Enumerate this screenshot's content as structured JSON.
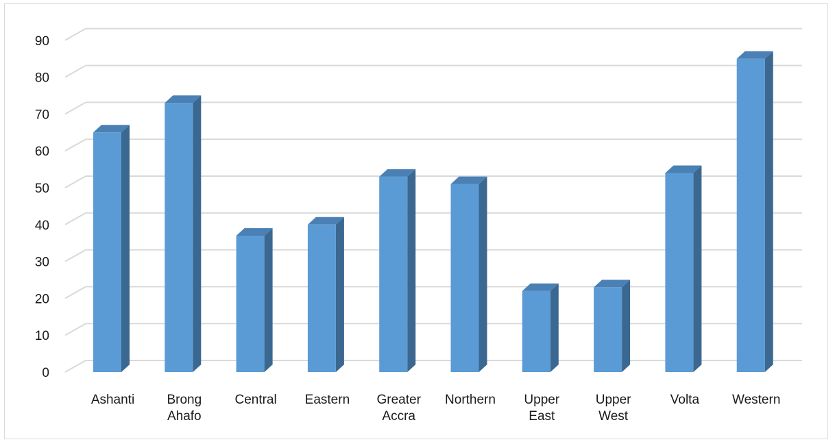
{
  "chart_data": {
    "type": "bar",
    "style": "3d-column",
    "categories": [
      [
        "Ashanti"
      ],
      [
        "Brong",
        "Ahafo"
      ],
      [
        "Central"
      ],
      [
        "Eastern"
      ],
      [
        "Greater",
        "Accra"
      ],
      [
        "Northern"
      ],
      [
        "Upper",
        "East"
      ],
      [
        "Upper",
        "West"
      ],
      [
        "Volta"
      ],
      [
        "Western"
      ]
    ],
    "values": [
      65,
      73,
      37,
      40,
      53,
      51,
      22,
      23,
      54,
      85
    ],
    "ylim": [
      0,
      90
    ],
    "yticks": [
      0,
      10,
      20,
      30,
      40,
      50,
      60,
      70,
      80,
      90
    ],
    "grid": true,
    "legend": "none",
    "colors": {
      "bar_front": "#5b9bd5",
      "bar_side": "#3b6890",
      "bar_top": "#4a80b4",
      "grid": "#d9d9d9"
    }
  }
}
